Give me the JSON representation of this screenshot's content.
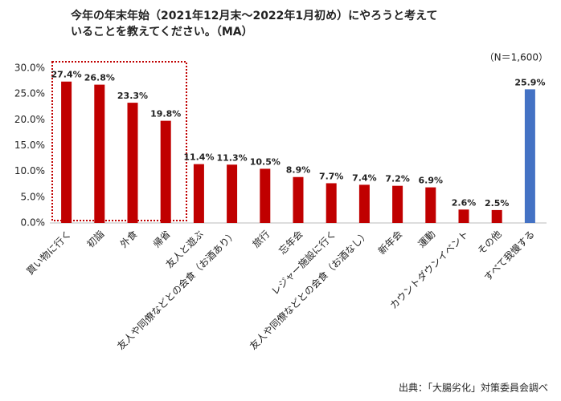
{
  "chart_data": {
    "type": "bar",
    "title_lines": [
      "今年の年末年始（2021年12月末～2022年1月初め）にやろうと考えて",
      "いることを教えてください。（MA）"
    ],
    "note": "（N＝1,600）",
    "source": "出典：「大腸劣化」対策委員会調べ",
    "categories": [
      "買い物に行く",
      "初詣",
      "外食",
      "帰省",
      "友人と遊ぶ",
      "友人や同僚などとの会食（お酒あり）",
      "旅行",
      "忘年会",
      "レジャー施設に行く",
      "友人や同僚などとの会食（お酒なし）",
      "新年会",
      "運動",
      "カウントダウンイベント",
      "その他",
      "すべて我慢する"
    ],
    "values": [
      27.4,
      26.8,
      23.3,
      19.8,
      11.4,
      11.3,
      10.5,
      8.9,
      7.7,
      7.4,
      7.2,
      6.9,
      2.6,
      2.5,
      25.9
    ],
    "value_labels": [
      "27.4%",
      "26.8%",
      "23.3%",
      "19.8%",
      "11.4%",
      "11.3%",
      "10.5%",
      "8.9%",
      "7.7%",
      "7.4%",
      "7.2%",
      "6.9%",
      "2.6%",
      "2.5%",
      "25.9%"
    ],
    "colors": [
      "#c00000",
      "#c00000",
      "#c00000",
      "#c00000",
      "#c00000",
      "#c00000",
      "#c00000",
      "#c00000",
      "#c00000",
      "#c00000",
      "#c00000",
      "#c00000",
      "#c00000",
      "#c00000",
      "#4472c4"
    ],
    "ylim": [
      0,
      30
    ],
    "yticks": [
      {
        "value": 0,
        "label": "0.0%"
      },
      {
        "value": 5,
        "label": "5.0%"
      },
      {
        "value": 10,
        "label": "10.0%"
      },
      {
        "value": 15,
        "label": "15.0%"
      },
      {
        "value": 20,
        "label": "20.0%"
      },
      {
        "value": 25,
        "label": "25.0%"
      },
      {
        "value": 30,
        "label": "30.0%"
      }
    ],
    "grid": false
  }
}
